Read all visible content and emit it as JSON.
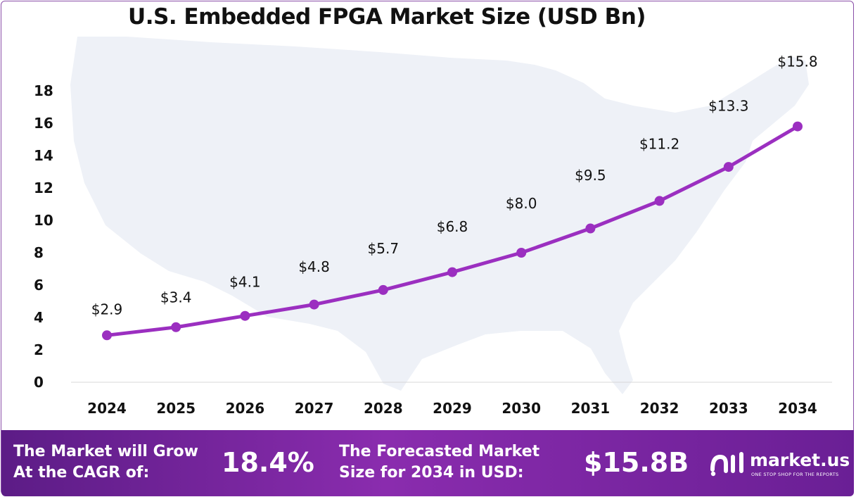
{
  "chart_data": {
    "type": "line",
    "title": "U.S. Embedded FPGA Market Size (USD Bn)",
    "categories": [
      "2024",
      "2025",
      "2026",
      "2027",
      "2028",
      "2029",
      "2030",
      "2031",
      "2032",
      "2033",
      "2034"
    ],
    "series": [
      {
        "values": [
          2.9,
          3.4,
          4.1,
          4.8,
          5.7,
          6.8,
          8.0,
          9.5,
          11.2,
          13.3,
          15.8
        ]
      }
    ],
    "data_labels": [
      "$2.9",
      "$3.4",
      "$4.1",
      "$4.8",
      "$5.7",
      "$6.8",
      "$8.0",
      "$9.5",
      "$11.2",
      "$13.3",
      "$15.8"
    ],
    "ylim": [
      0,
      18
    ],
    "yticks": [
      0,
      2,
      4,
      6,
      8,
      10,
      12,
      14,
      16,
      18
    ],
    "xlabel": "",
    "ylabel": "",
    "grid": false,
    "line_color": "#9b2fc0",
    "background_image": "usa-map-silhouette"
  },
  "footer": {
    "cagr_label_line1": "The Market will Grow",
    "cagr_label_line2": "At the CAGR of:",
    "cagr_value": "18.4%",
    "forecast_label_line1": "The Forecasted Market",
    "forecast_label_line2": "Size for 2034 in USD:",
    "forecast_value": "$15.8B"
  },
  "logo": {
    "name": "market.us",
    "tagline": "ONE STOP SHOP FOR THE REPORTS",
    "icon": "market-us-logo-icon"
  },
  "colors": {
    "accent": "#9b2fc0",
    "footer_start": "#5c1c86",
    "footer_mid": "#8a2cae",
    "map_fill": "#eef1f7"
  }
}
